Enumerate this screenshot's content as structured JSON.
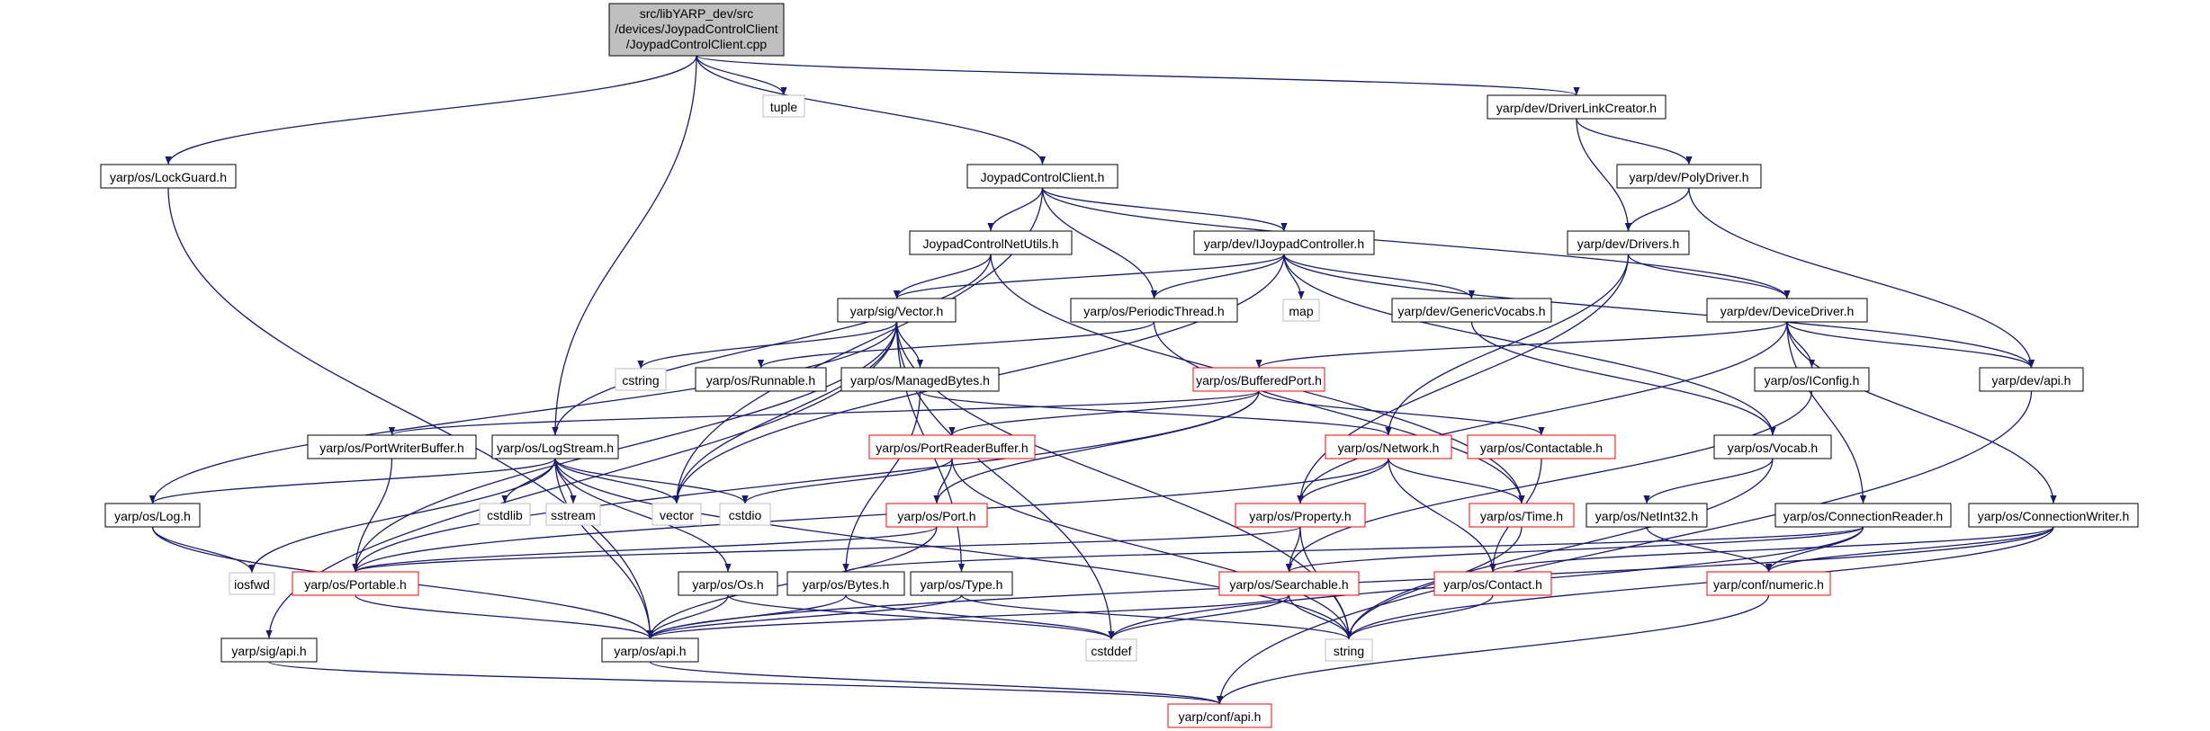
{
  "graph": {
    "root": {
      "lines": [
        "src/libYARP_dev/src",
        "/devices/JoypadControlClient",
        "/JoypadControlClient.cpp"
      ]
    },
    "nodes": [
      {
        "id": "lockguard",
        "label": "yarp/os/LockGuard.h",
        "style": "normal"
      },
      {
        "id": "tuple",
        "label": "tuple",
        "style": "system"
      },
      {
        "id": "joypadcc",
        "label": "JoypadControlClient.h",
        "style": "normal"
      },
      {
        "id": "driverlink",
        "label": "yarp/dev/DriverLinkCreator.h",
        "style": "normal"
      },
      {
        "id": "polydriver",
        "label": "yarp/dev/PolyDriver.h",
        "style": "normal"
      },
      {
        "id": "drivers",
        "label": "yarp/dev/Drivers.h",
        "style": "normal"
      },
      {
        "id": "netutils",
        "label": "JoypadControlNetUtils.h",
        "style": "normal"
      },
      {
        "id": "ijoypad",
        "label": "yarp/dev/IJoypadController.h",
        "style": "normal"
      },
      {
        "id": "vector",
        "label": "yarp/sig/Vector.h",
        "style": "normal"
      },
      {
        "id": "periodic",
        "label": "yarp/os/PeriodicThread.h",
        "style": "normal"
      },
      {
        "id": "map",
        "label": "map",
        "style": "system"
      },
      {
        "id": "genericvocabs",
        "label": "yarp/dev/GenericVocabs.h",
        "style": "normal"
      },
      {
        "id": "devicedriver",
        "label": "yarp/dev/DeviceDriver.h",
        "style": "normal"
      },
      {
        "id": "cstring",
        "label": "cstring",
        "style": "system"
      },
      {
        "id": "runnable",
        "label": "yarp/os/Runnable.h",
        "style": "normal"
      },
      {
        "id": "managedbytes",
        "label": "yarp/os/ManagedBytes.h",
        "style": "normal"
      },
      {
        "id": "bufferedport",
        "label": "yarp/os/BufferedPort.h",
        "style": "red"
      },
      {
        "id": "iconfig",
        "label": "yarp/os/IConfig.h",
        "style": "normal"
      },
      {
        "id": "devapi",
        "label": "yarp/dev/api.h",
        "style": "normal"
      },
      {
        "id": "portwriterbuffer",
        "label": "yarp/os/PortWriterBuffer.h",
        "style": "normal"
      },
      {
        "id": "logstream",
        "label": "yarp/os/LogStream.h",
        "style": "normal"
      },
      {
        "id": "portreaderbuffer",
        "label": "yarp/os/PortReaderBuffer.h",
        "style": "red"
      },
      {
        "id": "network",
        "label": "yarp/os/Network.h",
        "style": "red"
      },
      {
        "id": "contactable",
        "label": "yarp/os/Contactable.h",
        "style": "red"
      },
      {
        "id": "vocab",
        "label": "yarp/os/Vocab.h",
        "style": "normal"
      },
      {
        "id": "log",
        "label": "yarp/os/Log.h",
        "style": "normal"
      },
      {
        "id": "cstdlib",
        "label": "cstdlib",
        "style": "system"
      },
      {
        "id": "sstream",
        "label": "sstream",
        "style": "system"
      },
      {
        "id": "vectorstd",
        "label": "vector",
        "style": "system"
      },
      {
        "id": "cstdio",
        "label": "cstdio",
        "style": "system"
      },
      {
        "id": "port",
        "label": "yarp/os/Port.h",
        "style": "red"
      },
      {
        "id": "property",
        "label": "yarp/os/Property.h",
        "style": "red"
      },
      {
        "id": "time",
        "label": "yarp/os/Time.h",
        "style": "red"
      },
      {
        "id": "netint32",
        "label": "yarp/os/NetInt32.h",
        "style": "normal"
      },
      {
        "id": "connreader",
        "label": "yarp/os/ConnectionReader.h",
        "style": "normal"
      },
      {
        "id": "connwriter",
        "label": "yarp/os/ConnectionWriter.h",
        "style": "normal"
      },
      {
        "id": "iosfwd",
        "label": "iosfwd",
        "style": "system"
      },
      {
        "id": "portable",
        "label": "yarp/os/Portable.h",
        "style": "red"
      },
      {
        "id": "os",
        "label": "yarp/os/Os.h",
        "style": "normal"
      },
      {
        "id": "bytes",
        "label": "yarp/os/Bytes.h",
        "style": "normal"
      },
      {
        "id": "type",
        "label": "yarp/os/Type.h",
        "style": "normal"
      },
      {
        "id": "searchable",
        "label": "yarp/os/Searchable.h",
        "style": "red"
      },
      {
        "id": "contact",
        "label": "yarp/os/Contact.h",
        "style": "red"
      },
      {
        "id": "numeric",
        "label": "yarp/conf/numeric.h",
        "style": "red"
      },
      {
        "id": "sigapi",
        "label": "yarp/sig/api.h",
        "style": "normal"
      },
      {
        "id": "osapi",
        "label": "yarp/os/api.h",
        "style": "normal"
      },
      {
        "id": "cstddef",
        "label": "cstddef",
        "style": "system"
      },
      {
        "id": "string",
        "label": "string",
        "style": "system"
      },
      {
        "id": "confapi",
        "label": "yarp/conf/api.h",
        "style": "red"
      }
    ],
    "edges": [
      [
        "root",
        "lockguard"
      ],
      [
        "root",
        "tuple"
      ],
      [
        "root",
        "joypadcc"
      ],
      [
        "root",
        "driverlink"
      ],
      [
        "root",
        "logstream"
      ],
      [
        "lockguard",
        "osapi"
      ],
      [
        "driverlink",
        "polydriver"
      ],
      [
        "driverlink",
        "drivers"
      ],
      [
        "polydriver",
        "drivers"
      ],
      [
        "polydriver",
        "devapi"
      ],
      [
        "joypadcc",
        "netutils"
      ],
      [
        "joypadcc",
        "ijoypad"
      ],
      [
        "joypadcc",
        "periodic"
      ],
      [
        "joypadcc",
        "devicedriver"
      ],
      [
        "joypadcc",
        "vectorstd"
      ],
      [
        "drivers",
        "devicedriver"
      ],
      [
        "drivers",
        "property"
      ],
      [
        "drivers",
        "network"
      ],
      [
        "netutils",
        "vector"
      ],
      [
        "netutils",
        "logstream"
      ],
      [
        "netutils",
        "time"
      ],
      [
        "ijoypad",
        "vector"
      ],
      [
        "ijoypad",
        "periodic"
      ],
      [
        "ijoypad",
        "map"
      ],
      [
        "ijoypad",
        "genericvocabs"
      ],
      [
        "ijoypad",
        "vocab"
      ],
      [
        "ijoypad",
        "devapi"
      ],
      [
        "ijoypad",
        "vectorstd"
      ],
      [
        "vector",
        "cstring"
      ],
      [
        "vector",
        "managedbytes"
      ],
      [
        "vector",
        "type"
      ],
      [
        "vector",
        "cstddef"
      ],
      [
        "vector",
        "string"
      ],
      [
        "vector",
        "sigapi"
      ],
      [
        "vector",
        "log"
      ],
      [
        "vector",
        "portable"
      ],
      [
        "vector",
        "vectorstd"
      ],
      [
        "periodic",
        "runnable"
      ],
      [
        "periodic",
        "time"
      ],
      [
        "genericvocabs",
        "vocab"
      ],
      [
        "devicedriver",
        "iconfig"
      ],
      [
        "devicedriver",
        "connreader"
      ],
      [
        "devicedriver",
        "connwriter"
      ],
      [
        "devicedriver",
        "devapi"
      ],
      [
        "devicedriver",
        "bufferedport"
      ],
      [
        "devicedriver",
        "property"
      ],
      [
        "managedbytes",
        "bytes"
      ],
      [
        "managedbytes",
        "network"
      ],
      [
        "bufferedport",
        "portreaderbuffer"
      ],
      [
        "bufferedport",
        "contactable"
      ],
      [
        "bufferedport",
        "port"
      ],
      [
        "bufferedport",
        "portwriterbuffer"
      ],
      [
        "bufferedport",
        "portable"
      ],
      [
        "iconfig",
        "searchable"
      ],
      [
        "devapi",
        "confapi"
      ],
      [
        "portwriterbuffer",
        "portable"
      ],
      [
        "logstream",
        "log"
      ],
      [
        "logstream",
        "iosfwd"
      ],
      [
        "logstream",
        "cstdlib"
      ],
      [
        "logstream",
        "sstream"
      ],
      [
        "logstream",
        "vectorstd"
      ],
      [
        "logstream",
        "cstdio"
      ],
      [
        "logstream",
        "os"
      ],
      [
        "logstream",
        "osapi"
      ],
      [
        "logstream",
        "string"
      ],
      [
        "portreaderbuffer",
        "port"
      ],
      [
        "portreaderbuffer",
        "cstdio"
      ],
      [
        "portreaderbuffer",
        "string"
      ],
      [
        "network",
        "property"
      ],
      [
        "network",
        "time"
      ],
      [
        "network",
        "contact"
      ],
      [
        "network",
        "portable"
      ],
      [
        "contactable",
        "contact"
      ],
      [
        "vocab",
        "netint32"
      ],
      [
        "vocab",
        "string"
      ],
      [
        "netint32",
        "numeric"
      ],
      [
        "log",
        "iosfwd"
      ],
      [
        "log",
        "osapi"
      ],
      [
        "port",
        "portable"
      ],
      [
        "port",
        "osapi"
      ],
      [
        "property",
        "searchable"
      ],
      [
        "property",
        "string"
      ],
      [
        "property",
        "portable"
      ],
      [
        "time",
        "string"
      ],
      [
        "connreader",
        "numeric"
      ],
      [
        "connreader",
        "searchable"
      ],
      [
        "connreader",
        "bytes"
      ],
      [
        "connreader",
        "cstddef"
      ],
      [
        "connwriter",
        "numeric"
      ],
      [
        "connwriter",
        "contact"
      ],
      [
        "connwriter",
        "string"
      ],
      [
        "connwriter",
        "osapi"
      ],
      [
        "portable",
        "osapi"
      ],
      [
        "os",
        "osapi"
      ],
      [
        "os",
        "cstddef"
      ],
      [
        "bytes",
        "osapi"
      ],
      [
        "bytes",
        "cstddef"
      ],
      [
        "type",
        "osapi"
      ],
      [
        "type",
        "string"
      ],
      [
        "searchable",
        "string"
      ],
      [
        "searchable",
        "cstddef"
      ],
      [
        "searchable",
        "osapi"
      ],
      [
        "contact",
        "string"
      ],
      [
        "numeric",
        "confapi"
      ],
      [
        "sigapi",
        "confapi"
      ],
      [
        "osapi",
        "confapi"
      ]
    ]
  },
  "colors": {
    "edge": "#191970",
    "node_border": "#000000",
    "system_border": "#bfbfbf",
    "system_text": "#000000",
    "red_border": "#ff0000",
    "root_fill": "#bfbfbf"
  }
}
